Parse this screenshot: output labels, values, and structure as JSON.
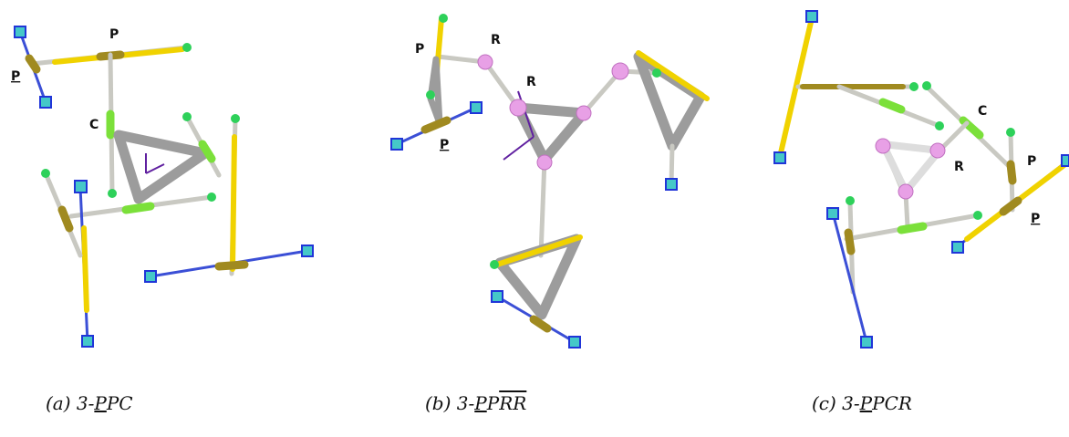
{
  "panels": [
    {
      "labels": [
        {
          "text": "P"
        },
        {
          "text": "P",
          "underline": true
        },
        {
          "text": "C"
        }
      ],
      "caption": [
        {
          "text": "(a) 3-"
        },
        {
          "text": "P",
          "underline": true
        },
        {
          "text": "PC"
        }
      ]
    },
    {
      "labels": [
        {
          "text": "P"
        },
        {
          "text": "R"
        },
        {
          "text": "R"
        },
        {
          "text": "P",
          "underline": true
        }
      ],
      "caption": [
        {
          "text": "(b) 3-"
        },
        {
          "text": "P",
          "underline": true
        },
        {
          "text": "P"
        },
        {
          "text": "RR",
          "overline": true
        }
      ]
    },
    {
      "labels": [
        {
          "text": "C"
        },
        {
          "text": "R"
        },
        {
          "text": "P"
        },
        {
          "text": "P",
          "underline": true
        }
      ],
      "caption": [
        {
          "text": "(c) 3-"
        },
        {
          "text": "P",
          "underline": true
        },
        {
          "text": "PCR"
        }
      ]
    }
  ]
}
